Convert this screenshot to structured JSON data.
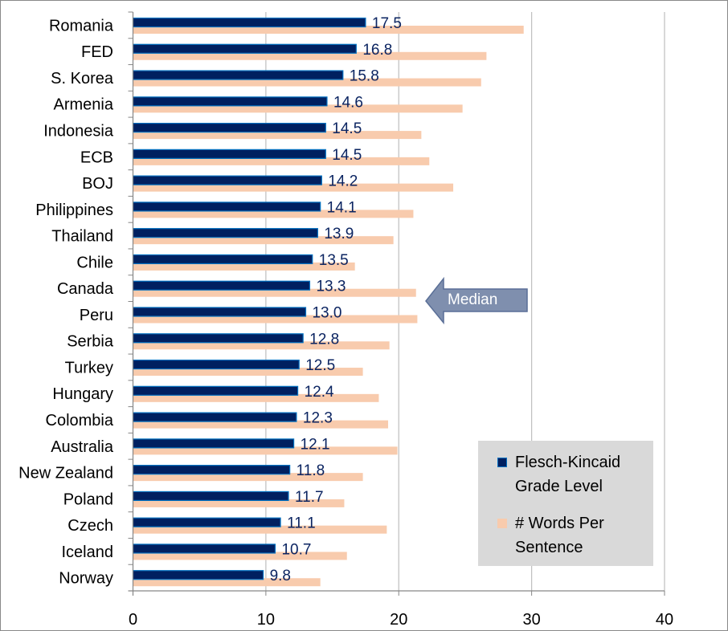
{
  "chart_data": {
    "type": "bar",
    "orientation": "horizontal",
    "categories": [
      "Romania",
      "FED",
      "S. Korea",
      "Armenia",
      "Indonesia",
      "ECB",
      "BOJ",
      "Philippines",
      "Thailand",
      "Chile",
      "Canada",
      "Peru",
      "Serbia",
      "Turkey",
      "Hungary",
      "Colombia",
      "Australia",
      "New Zealand",
      "Poland",
      "Czech",
      "Iceland",
      "Norway"
    ],
    "series": [
      {
        "name": "Flesch-Kincaid Grade Level",
        "color": "#002060",
        "data_labels": true,
        "values": [
          17.5,
          16.8,
          15.8,
          14.6,
          14.5,
          14.5,
          14.2,
          14.1,
          13.9,
          13.5,
          13.3,
          13.0,
          12.8,
          12.5,
          12.4,
          12.3,
          12.1,
          11.8,
          11.7,
          11.1,
          10.7,
          9.8
        ]
      },
      {
        "name": "# Words Per Sentence",
        "color": "#f8cbad",
        "data_labels": false,
        "values": [
          29.4,
          26.6,
          26.2,
          24.8,
          21.7,
          22.3,
          24.1,
          21.1,
          19.6,
          16.7,
          21.3,
          21.4,
          19.3,
          17.3,
          18.5,
          19.2,
          19.9,
          17.3,
          15.9,
          19.1,
          16.1,
          14.1
        ]
      }
    ],
    "xlim": [
      0,
      40
    ],
    "xticks": [
      0,
      10,
      20,
      30,
      40
    ],
    "grid": "vertical",
    "legend": {
      "placement": "bottom-right",
      "labels": [
        "Flesch-Kincaid\nGrade Level",
        "# Words Per\nSentence"
      ]
    },
    "annotation": {
      "text": "Median",
      "shape": "left-arrow",
      "color": "#7f8fae"
    }
  }
}
